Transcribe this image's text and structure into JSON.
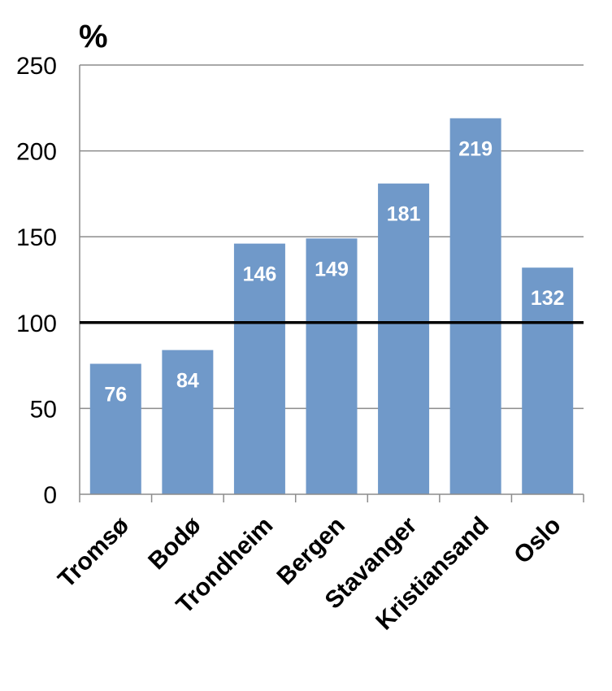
{
  "chart_data": {
    "type": "bar",
    "ylabel": "%",
    "categories": [
      "Tromsø",
      "Bodø",
      "Trondheim",
      "Bergen",
      "Stavanger",
      "Kristiansand",
      "Oslo"
    ],
    "values": [
      76,
      84,
      146,
      149,
      181,
      219,
      132
    ],
    "data_labels": [
      "76",
      "84",
      "146",
      "149",
      "181",
      "219",
      "132"
    ],
    "ylim": [
      0,
      250
    ],
    "yticks": [
      0,
      50,
      100,
      150,
      200,
      250
    ],
    "ytick_labels": [
      "0",
      "50",
      "100",
      "150",
      "200",
      "250"
    ],
    "reference_line": 100,
    "grid": true,
    "legend": "none",
    "bar_color": "#7099c9",
    "grid_color": "#8c8c8c",
    "reference_line_color": "#000000",
    "data_label_color": "#ffffff"
  }
}
